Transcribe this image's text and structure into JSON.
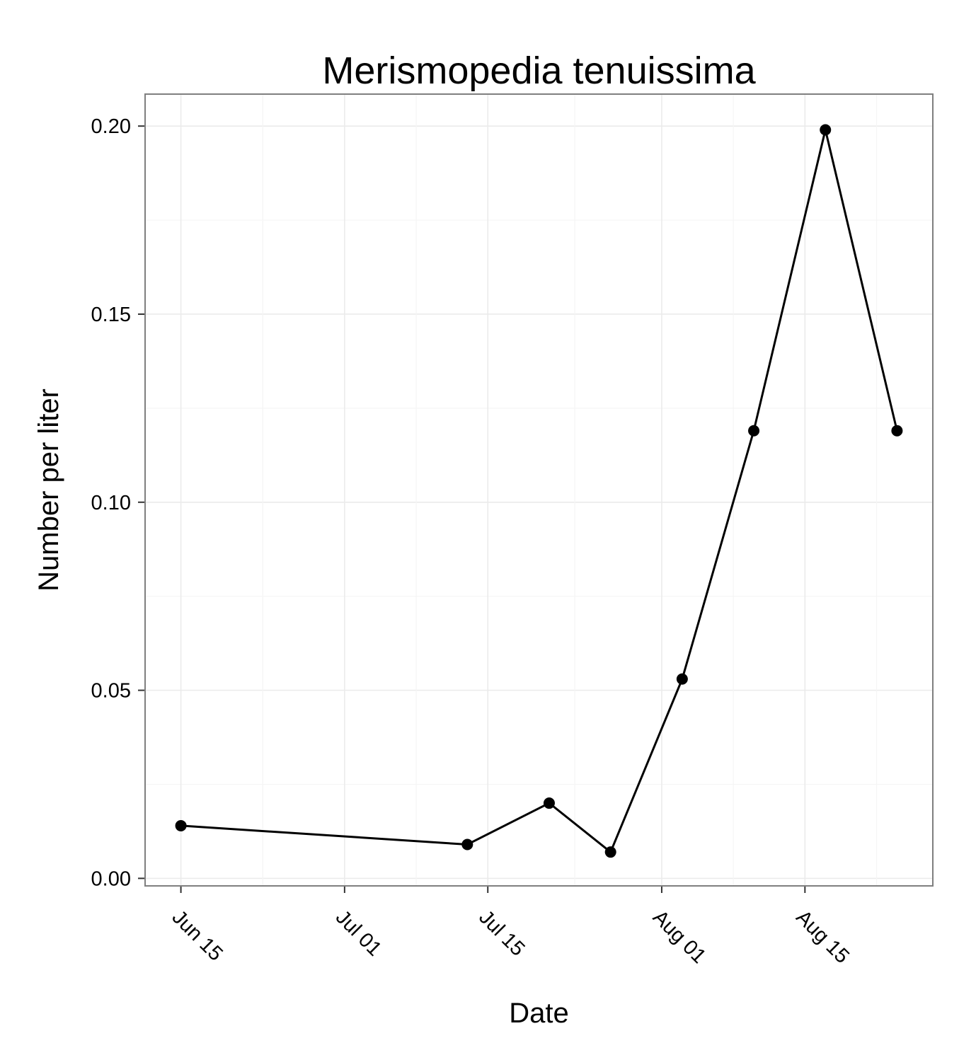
{
  "chart_data": {
    "type": "line",
    "title": "Merismopedia tenuissima",
    "xlabel": "Date",
    "ylabel": "Number per liter",
    "x_tick_labels": [
      "Jun 15",
      "Jul 01",
      "Jul 15",
      "Aug 01",
      "Aug 15"
    ],
    "x_ticks": [
      "2012-06-15",
      "2012-07-01",
      "2012-07-15",
      "2012-08-01",
      "2012-08-15"
    ],
    "x_range": [
      "2012-06-11.5",
      "2012-08-27.5"
    ],
    "y_tick_labels": [
      "0.00",
      "0.05",
      "0.10",
      "0.15",
      "0.20"
    ],
    "y_ticks": [
      0,
      0.05,
      0.1,
      0.15,
      0.2
    ],
    "ylim": [
      -0.002,
      0.2085
    ],
    "grid": true,
    "legend": "none",
    "line_color": "#000000",
    "panel_border_color": "#7f7f7f",
    "grid_color": "#ebebeb",
    "series": [
      {
        "x": [
          "2012-06-15",
          "2012-07-13",
          "2012-07-21",
          "2012-07-27",
          "2012-08-03",
          "2012-08-10",
          "2012-08-17",
          "2012-08-24"
        ],
        "y": [
          0.014,
          0.009,
          0.02,
          0.007,
          0.053,
          0.119,
          0.199,
          0.119
        ]
      }
    ]
  }
}
